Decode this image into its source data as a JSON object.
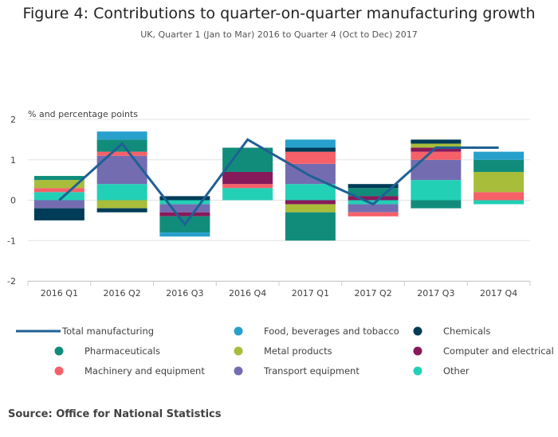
{
  "chart_data": {
    "type": "bar",
    "title": "Figure 4: Contributions to quarter-on-quarter manufacturing growth",
    "subtitle": "UK, Quarter 1 (Jan to Mar) 2016 to Quarter 4 (Oct to Dec) 2017",
    "ylabel": "% and percentage points",
    "ylim": [
      -2,
      2
    ],
    "yticks": [
      2,
      1,
      0,
      -1,
      -2
    ],
    "grid": true,
    "stacked": true,
    "legend_position": "bottom",
    "categories": [
      "2016 Q1",
      "2016 Q2",
      "2016 Q3",
      "2016 Q4",
      "2017 Q1",
      "2017 Q2",
      "2017 Q3",
      "2017 Q4"
    ],
    "line": {
      "name": "Total manufacturing",
      "color": "#206095",
      "values": [
        0.0,
        1.4,
        -0.6,
        1.5,
        0.6,
        -0.1,
        1.3,
        1.3
      ]
    },
    "series": [
      {
        "name": "Other",
        "color": "#22d0b6",
        "values": [
          0.2,
          0.4,
          -0.1,
          0.3,
          0.4,
          -0.1,
          0.5,
          -0.1
        ]
      },
      {
        "name": "Transport equipment",
        "color": "#746cb1",
        "values": [
          -0.2,
          0.7,
          -0.2,
          0.0,
          0.5,
          -0.2,
          0.5,
          0.0
        ]
      },
      {
        "name": "Machinery and equipment",
        "color": "#f66068",
        "values": [
          0.1,
          0.1,
          0.0,
          0.1,
          0.3,
          -0.1,
          0.2,
          0.2
        ]
      },
      {
        "name": "Computer and electrical",
        "color": "#871a5b",
        "values": [
          0.0,
          0.0,
          -0.1,
          0.3,
          -0.1,
          0.1,
          0.1,
          0.0
        ]
      },
      {
        "name": "Metal products",
        "color": "#a8bd3a",
        "values": [
          0.2,
          -0.2,
          0.0,
          0.0,
          -0.2,
          0.0,
          0.1,
          0.5
        ]
      },
      {
        "name": "Pharmaceuticals",
        "color": "#118c7b",
        "values": [
          0.1,
          0.3,
          -0.4,
          0.6,
          -0.7,
          0.2,
          -0.2,
          0.3
        ]
      },
      {
        "name": "Chemicals",
        "color": "#003c57",
        "values": [
          -0.3,
          -0.1,
          0.1,
          0.0,
          0.1,
          0.1,
          0.1,
          0.0
        ]
      },
      {
        "name": "Food, beverages and tobacco",
        "color": "#27a0cc",
        "values": [
          0.0,
          0.2,
          -0.1,
          0.0,
          0.2,
          0.0,
          0.0,
          0.2
        ]
      }
    ],
    "legend_order": [
      "Total manufacturing",
      "Food, beverages and tobacco",
      "Chemicals",
      "Pharmaceuticals",
      "Metal products",
      "Computer and electrical",
      "Machinery and equipment",
      "Transport equipment",
      "Other"
    ]
  },
  "source": "Source: Office for National Statistics"
}
